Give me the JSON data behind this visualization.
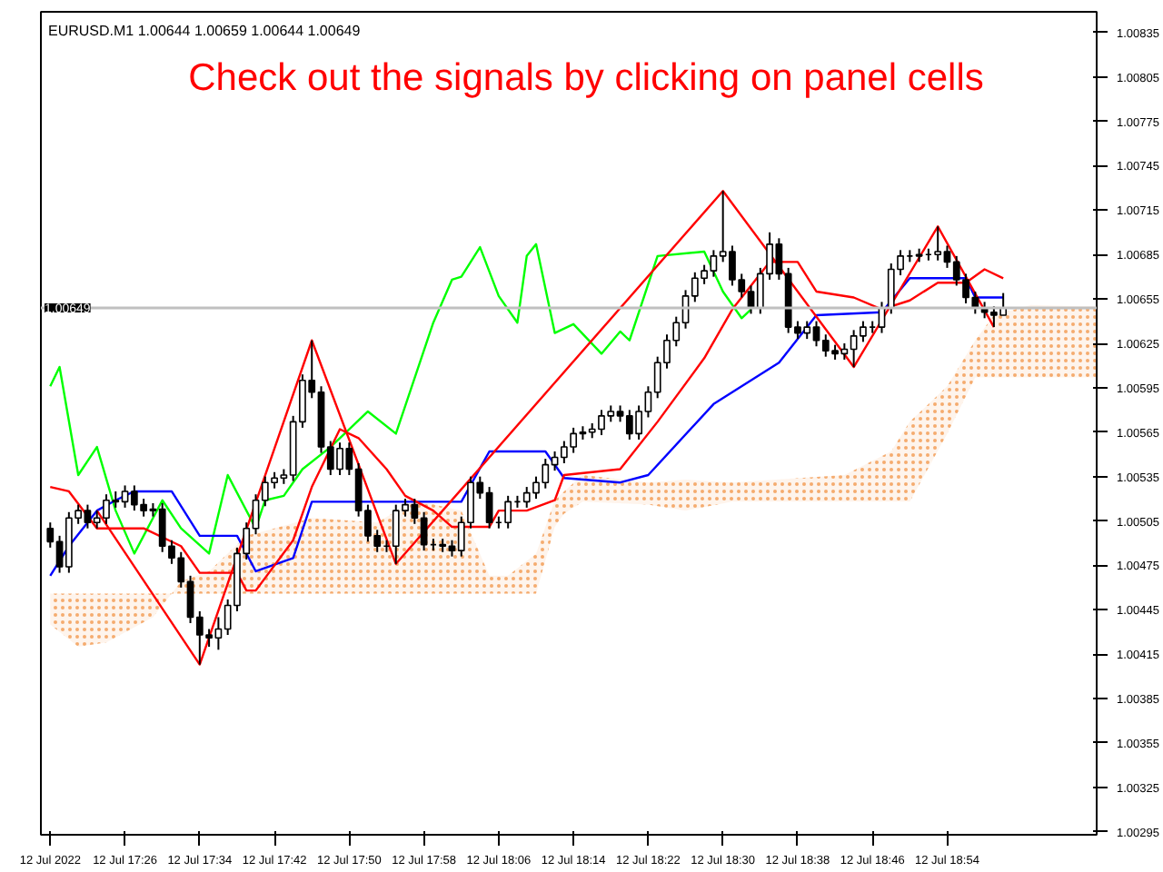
{
  "chart_data": {
    "type": "candlestick",
    "title": "Check out the signals by clicking on panel cells",
    "annotations": [
      "EURUSD.M1  1.00644 1.00659 1.00644 1.00649"
    ],
    "xlim": [
      "2022-07-12T17:17",
      "2022-07-12T19:10"
    ],
    "ylim": [
      1.00293,
      1.00849
    ],
    "xticks": [
      {
        "value": "2022-07-12T17:18",
        "label": "12 Jul 2022"
      },
      {
        "value": "2022-07-12T17:26",
        "label": "12 Jul 17:26"
      },
      {
        "value": "2022-07-12T17:34",
        "label": "12 Jul 17:34"
      },
      {
        "value": "2022-07-12T17:42",
        "label": "12 Jul 17:42"
      },
      {
        "value": "2022-07-12T17:50",
        "label": "12 Jul 17:50"
      },
      {
        "value": "2022-07-12T17:58",
        "label": "12 Jul 17:58"
      },
      {
        "value": "2022-07-12T18:06",
        "label": "12 Jul 18:06"
      },
      {
        "value": "2022-07-12T18:14",
        "label": "12 Jul 18:14"
      },
      {
        "value": "2022-07-12T18:22",
        "label": "12 Jul 18:22"
      },
      {
        "value": "2022-07-12T18:30",
        "label": "12 Jul 18:30"
      },
      {
        "value": "2022-07-12T18:38",
        "label": "12 Jul 18:38"
      },
      {
        "value": "2022-07-12T18:46",
        "label": "12 Jul 18:46"
      },
      {
        "value": "2022-07-12T18:54",
        "label": "12 Jul 18:54"
      }
    ],
    "yticks": [
      1.00295,
      1.00325,
      1.00355,
      1.00385,
      1.00415,
      1.00445,
      1.00475,
      1.00505,
      1.00535,
      1.00565,
      1.00595,
      1.00625,
      1.00655,
      1.00685,
      1.00715,
      1.00745,
      1.00775,
      1.00805,
      1.00835
    ],
    "ref_lines": [
      {
        "axis": "y",
        "value": 1.00649,
        "label": "1.00649",
        "color": "#c0c0c0"
      }
    ],
    "x": [
      "2022-07-12T17:18",
      "2022-07-12T17:19",
      "2022-07-12T17:20",
      "2022-07-12T17:21",
      "2022-07-12T17:22",
      "2022-07-12T17:23",
      "2022-07-12T17:24",
      "2022-07-12T17:25",
      "2022-07-12T17:26",
      "2022-07-12T17:27",
      "2022-07-12T17:28",
      "2022-07-12T17:29",
      "2022-07-12T17:30",
      "2022-07-12T17:31",
      "2022-07-12T17:32",
      "2022-07-12T17:33",
      "2022-07-12T17:34",
      "2022-07-12T17:35",
      "2022-07-12T17:36",
      "2022-07-12T17:37",
      "2022-07-12T17:38",
      "2022-07-12T17:39",
      "2022-07-12T17:40",
      "2022-07-12T17:41",
      "2022-07-12T17:42",
      "2022-07-12T17:43",
      "2022-07-12T17:44",
      "2022-07-12T17:45",
      "2022-07-12T17:46",
      "2022-07-12T17:47",
      "2022-07-12T17:48",
      "2022-07-12T17:49",
      "2022-07-12T17:50",
      "2022-07-12T17:51",
      "2022-07-12T17:52",
      "2022-07-12T17:53",
      "2022-07-12T17:54",
      "2022-07-12T17:55",
      "2022-07-12T17:56",
      "2022-07-12T17:57",
      "2022-07-12T17:58",
      "2022-07-12T17:59",
      "2022-07-12T18:00",
      "2022-07-12T18:01",
      "2022-07-12T18:02",
      "2022-07-12T18:03",
      "2022-07-12T18:04",
      "2022-07-12T18:05",
      "2022-07-12T18:06",
      "2022-07-12T18:07",
      "2022-07-12T18:08",
      "2022-07-12T18:09",
      "2022-07-12T18:10",
      "2022-07-12T18:11",
      "2022-07-12T18:12",
      "2022-07-12T18:13",
      "2022-07-12T18:14",
      "2022-07-12T18:15",
      "2022-07-12T18:16",
      "2022-07-12T18:17",
      "2022-07-12T18:18",
      "2022-07-12T18:19",
      "2022-07-12T18:20",
      "2022-07-12T18:21",
      "2022-07-12T18:22",
      "2022-07-12T18:23",
      "2022-07-12T18:24",
      "2022-07-12T18:25",
      "2022-07-12T18:26",
      "2022-07-12T18:27",
      "2022-07-12T18:28",
      "2022-07-12T18:29",
      "2022-07-12T18:30",
      "2022-07-12T18:31",
      "2022-07-12T18:32",
      "2022-07-12T18:33",
      "2022-07-12T18:34",
      "2022-07-12T18:35",
      "2022-07-12T18:36",
      "2022-07-12T18:37",
      "2022-07-12T18:38",
      "2022-07-12T18:39",
      "2022-07-12T18:40",
      "2022-07-12T18:41",
      "2022-07-12T18:42",
      "2022-07-12T18:43",
      "2022-07-12T18:44",
      "2022-07-12T18:45",
      "2022-07-12T18:46",
      "2022-07-12T18:47",
      "2022-07-12T18:48",
      "2022-07-12T18:49",
      "2022-07-12T18:50",
      "2022-07-12T18:51",
      "2022-07-12T18:52",
      "2022-07-12T18:53",
      "2022-07-12T18:54",
      "2022-07-12T18:55",
      "2022-07-12T18:56",
      "2022-07-12T18:57",
      "2022-07-12T18:58",
      "2022-07-12T18:59",
      "2022-07-12T19:00"
    ],
    "ohlc": [
      [
        1.005,
        1.00504,
        1.00487,
        1.00491
      ],
      [
        1.00491,
        1.00495,
        1.0047,
        1.00474
      ],
      [
        1.00474,
        1.00511,
        1.0047,
        1.00507
      ],
      [
        1.00507,
        1.00516,
        1.00503,
        1.00512
      ],
      [
        1.00512,
        1.00516,
        1.005,
        1.00504
      ],
      [
        1.00504,
        1.00512,
        1.005,
        1.00507
      ],
      [
        1.00507,
        1.00523,
        1.00503,
        1.00519
      ],
      [
        1.00519,
        1.00525,
        1.00514,
        1.00518
      ],
      [
        1.00518,
        1.00529,
        1.00514,
        1.00525
      ],
      [
        1.00525,
        1.00529,
        1.00512,
        1.00516
      ],
      [
        1.00516,
        1.0052,
        1.00508,
        1.00512
      ],
      [
        1.00512,
        1.00517,
        1.00508,
        1.00513
      ],
      [
        1.00513,
        1.00517,
        1.00484,
        1.00488
      ],
      [
        1.00488,
        1.00492,
        1.00476,
        1.0048
      ],
      [
        1.0048,
        1.00484,
        1.0046,
        1.00464
      ],
      [
        1.00464,
        1.00468,
        1.00436,
        1.0044
      ],
      [
        1.0044,
        1.00444,
        1.00408,
        1.00428
      ],
      [
        1.00428,
        1.00432,
        1.0042,
        1.00426
      ],
      [
        1.00426,
        1.0044,
        1.00418,
        1.00432
      ],
      [
        1.00432,
        1.00452,
        1.00428,
        1.00448
      ],
      [
        1.00448,
        1.00487,
        1.00444,
        1.00483
      ],
      [
        1.00483,
        1.00504,
        1.00479,
        1.005
      ],
      [
        1.005,
        1.00523,
        1.00496,
        1.00519
      ],
      [
        1.00519,
        1.00535,
        1.00515,
        1.00531
      ],
      [
        1.00531,
        1.00538,
        1.00527,
        1.00534
      ],
      [
        1.00534,
        1.0054,
        1.0053,
        1.00536
      ],
      [
        1.00536,
        1.00576,
        1.00532,
        1.00572
      ],
      [
        1.00572,
        1.00604,
        1.00568,
        1.006
      ],
      [
        1.006,
        1.00627,
        1.00588,
        1.00592
      ],
      [
        1.00592,
        1.00596,
        1.00551,
        1.00555
      ],
      [
        1.00555,
        1.00559,
        1.00536,
        1.0054
      ],
      [
        1.0054,
        1.00558,
        1.00536,
        1.00554
      ],
      [
        1.00554,
        1.00558,
        1.00536,
        1.0054
      ],
      [
        1.0054,
        1.00544,
        1.00508,
        1.00512
      ],
      [
        1.00512,
        1.00516,
        1.00491,
        1.00495
      ],
      [
        1.00495,
        1.00499,
        1.00484,
        1.00488
      ],
      [
        1.00488,
        1.00492,
        1.00484,
        1.00488
      ],
      [
        1.00488,
        1.00516,
        1.00476,
        1.00512
      ],
      [
        1.00512,
        1.0052,
        1.00508,
        1.00516
      ],
      [
        1.00516,
        1.0052,
        1.00503,
        1.00507
      ],
      [
        1.00507,
        1.00511,
        1.00485,
        1.00489
      ],
      [
        1.00489,
        1.00493,
        1.00485,
        1.00489
      ],
      [
        1.00489,
        1.00493,
        1.00484,
        1.00488
      ],
      [
        1.00488,
        1.00492,
        1.00481,
        1.00485
      ],
      [
        1.00485,
        1.00508,
        1.00481,
        1.00504
      ],
      [
        1.00504,
        1.00535,
        1.005,
        1.00531
      ],
      [
        1.00531,
        1.00535,
        1.0052,
        1.00524
      ],
      [
        1.00524,
        1.00528,
        1.005,
        1.00504
      ],
      [
        1.00504,
        1.00508,
        1.005,
        1.00504
      ],
      [
        1.00504,
        1.00522,
        1.005,
        1.00518
      ],
      [
        1.00518,
        1.00522,
        1.00514,
        1.00518
      ],
      [
        1.00518,
        1.00528,
        1.00514,
        1.00524
      ],
      [
        1.00524,
        1.00535,
        1.0052,
        1.00531
      ],
      [
        1.00531,
        1.00547,
        1.00527,
        1.00543
      ],
      [
        1.00543,
        1.00552,
        1.00539,
        1.00548
      ],
      [
        1.00548,
        1.00559,
        1.00544,
        1.00555
      ],
      [
        1.00555,
        1.00568,
        1.00551,
        1.00564
      ],
      [
        1.00564,
        1.00569,
        1.0056,
        1.00565
      ],
      [
        1.00565,
        1.00571,
        1.00561,
        1.00567
      ],
      [
        1.00567,
        1.0058,
        1.00563,
        1.00576
      ],
      [
        1.00576,
        1.00583,
        1.00572,
        1.00579
      ],
      [
        1.00579,
        1.00583,
        1.00572,
        1.00576
      ],
      [
        1.00576,
        1.0058,
        1.0056,
        1.00564
      ],
      [
        1.00564,
        1.00583,
        1.0056,
        1.00579
      ],
      [
        1.00579,
        1.00596,
        1.00575,
        1.00592
      ],
      [
        1.00592,
        1.00616,
        1.00588,
        1.00612
      ],
      [
        1.00612,
        1.00631,
        1.00608,
        1.00627
      ],
      [
        1.00627,
        1.00643,
        1.00623,
        1.00639
      ],
      [
        1.00639,
        1.00661,
        1.00635,
        1.00657
      ],
      [
        1.00657,
        1.00673,
        1.00653,
        1.00669
      ],
      [
        1.00669,
        1.00678,
        1.00665,
        1.00674
      ],
      [
        1.00674,
        1.00688,
        1.0067,
        1.00684
      ],
      [
        1.00684,
        1.00728,
        1.0068,
        1.00687
      ],
      [
        1.00687,
        1.00691,
        1.00664,
        1.00668
      ],
      [
        1.00668,
        1.00672,
        1.00656,
        1.0066
      ],
      [
        1.0066,
        1.00664,
        1.00645,
        1.00649
      ],
      [
        1.00649,
        1.00676,
        1.00645,
        1.00672
      ],
      [
        1.00672,
        1.007,
        1.00668,
        1.00692
      ],
      [
        1.00692,
        1.00696,
        1.00668,
        1.00672
      ],
      [
        1.00672,
        1.00676,
        1.00632,
        1.00636
      ],
      [
        1.00636,
        1.0064,
        1.00628,
        1.00632
      ],
      [
        1.00632,
        1.0064,
        1.00628,
        1.00636
      ],
      [
        1.00636,
        1.0064,
        1.00623,
        1.00627
      ],
      [
        1.00627,
        1.00631,
        1.00616,
        1.0062
      ],
      [
        1.0062,
        1.00624,
        1.00614,
        1.00618
      ],
      [
        1.00618,
        1.00625,
        1.00614,
        1.00621
      ],
      [
        1.00621,
        1.00634,
        1.00609,
        1.0063
      ],
      [
        1.0063,
        1.0064,
        1.00626,
        1.00636
      ],
      [
        1.00636,
        1.0064,
        1.00632,
        1.00636
      ],
      [
        1.00636,
        1.00653,
        1.00632,
        1.00649
      ],
      [
        1.00649,
        1.00679,
        1.00645,
        1.00675
      ],
      [
        1.00675,
        1.00688,
        1.00671,
        1.00684
      ],
      [
        1.00684,
        1.00688,
        1.0068,
        1.00684
      ],
      [
        1.00684,
        1.00689,
        1.0068,
        1.00685
      ],
      [
        1.00685,
        1.00689,
        1.00681,
        1.00685
      ],
      [
        1.00685,
        1.00704,
        1.00681,
        1.00687
      ],
      [
        1.00687,
        1.00691,
        1.00676,
        1.0068
      ],
      [
        1.0068,
        1.00684,
        1.00664,
        1.00668
      ],
      [
        1.00668,
        1.00672,
        1.00652,
        1.00656
      ],
      [
        1.00656,
        1.0066,
        1.00645,
        1.00649
      ],
      [
        1.00649,
        1.00653,
        1.00642,
        1.00646
      ],
      [
        1.00646,
        1.0065,
        1.00636,
        1.00644
      ],
      [
        1.00644,
        1.00659,
        1.00644,
        1.00649
      ]
    ],
    "series": [
      {
        "type": "area",
        "color": "#f4a460",
        "x": [
          "2022-07-12T17:18",
          "2022-07-12T17:21",
          "2022-07-12T17:24",
          "2022-07-12T17:29",
          "2022-07-12T17:31",
          "2022-07-12T17:32",
          "2022-07-12T17:35",
          "2022-07-12T17:39",
          "2022-07-12T17:42",
          "2022-07-12T17:46",
          "2022-07-12T17:53",
          "2022-07-12T17:57",
          "2022-07-12T18:02",
          "2022-07-12T18:05",
          "2022-07-12T18:07",
          "2022-07-12T18:10",
          "2022-07-12T18:12",
          "2022-07-12T18:13",
          "2022-07-12T18:15",
          "2022-07-12T18:22",
          "2022-07-12T18:26",
          "2022-07-12T18:31",
          "2022-07-12T18:43",
          "2022-07-12T18:48",
          "2022-07-12T18:50",
          "2022-07-12T18:54",
          "2022-07-12T18:57",
          "2022-07-12T18:59",
          "2022-07-12T19:03",
          "2022-07-12T19:08",
          "2022-07-12T19:10"
        ],
        "values": [
          null,
          null,
          null,
          null,
          null,
          null,
          null,
          null,
          null,
          null,
          null,
          null,
          null,
          null,
          null,
          null,
          null,
          null,
          null,
          null,
          null,
          null,
          null,
          null,
          null,
          null,
          null,
          null,
          null,
          null,
          null
        ],
        "upper": [
          1.00435,
          1.0042,
          1.00423,
          1.0044,
          1.00456,
          1.00464,
          1.00471,
          1.00495,
          1.005,
          1.00507,
          1.00504,
          1.00519,
          1.00512,
          1.00468,
          1.00468,
          1.00483,
          1.00519,
          1.00525,
          1.00536,
          1.00531,
          1.00533,
          1.00531,
          1.00536,
          1.00552,
          1.00572,
          1.00596,
          1.00627,
          1.00644,
          1.00651,
          1.0065,
          1.0065
        ],
        "lower": [
          1.00456,
          1.00456,
          1.00456,
          1.00456,
          1.00456,
          1.00456,
          1.00456,
          1.00456,
          1.00456,
          1.00456,
          1.00456,
          1.00456,
          1.00456,
          1.00456,
          1.00456,
          1.00456,
          1.00501,
          1.0051,
          1.00518,
          1.00516,
          1.00512,
          1.00518,
          1.00518,
          1.00518,
          1.00518,
          1.00564,
          1.00602,
          1.00602,
          1.00602,
          1.00602,
          1.00602
        ]
      },
      {
        "type": "line",
        "color": "#00ff00",
        "x": [
          "2022-07-12T17:18",
          "2022-07-12T17:19",
          "2022-07-12T17:21",
          "2022-07-12T17:23",
          "2022-07-12T17:25",
          "2022-07-12T17:27",
          "2022-07-12T17:30",
          "2022-07-12T17:32",
          "2022-07-12T17:35",
          "2022-07-12T17:37",
          "2022-07-12T17:40",
          "2022-07-12T17:41",
          "2022-07-12T17:43",
          "2022-07-12T17:45",
          "2022-07-12T17:48",
          "2022-07-12T17:50",
          "2022-07-12T17:52",
          "2022-07-12T17:55",
          "2022-07-12T17:59",
          "2022-07-12T18:01",
          "2022-07-12T18:02",
          "2022-07-12T18:04",
          "2022-07-12T18:06",
          "2022-07-12T18:08",
          "2022-07-12T18:09",
          "2022-07-12T18:10",
          "2022-07-12T18:12",
          "2022-07-12T18:14",
          "2022-07-12T18:17",
          "2022-07-12T18:19",
          "2022-07-12T18:20",
          "2022-07-12T18:23",
          "2022-07-12T18:28",
          "2022-07-12T18:30",
          "2022-07-12T18:32",
          "2022-07-12T18:33"
        ],
        "values": [
          1.00596,
          1.00609,
          1.00536,
          1.00555,
          1.00512,
          1.00483,
          1.00519,
          1.005,
          1.00483,
          1.00536,
          1.005,
          1.00519,
          1.00522,
          1.0054,
          1.00555,
          1.00567,
          1.00579,
          1.00564,
          1.00639,
          1.00668,
          1.0067,
          1.0069,
          1.00657,
          1.00639,
          1.00684,
          1.00692,
          1.00632,
          1.00638,
          1.00618,
          1.00633,
          1.00627,
          1.00684,
          1.00687,
          1.0066,
          1.00642,
          1.00648
        ]
      },
      {
        "type": "line",
        "color": "#0000ff",
        "x": [
          "2022-07-12T17:18",
          "2022-07-12T17:20",
          "2022-07-12T17:23",
          "2022-07-12T17:25",
          "2022-07-12T17:27",
          "2022-07-12T17:31",
          "2022-07-12T17:34",
          "2022-07-12T17:38",
          "2022-07-12T17:40",
          "2022-07-12T17:44",
          "2022-07-12T17:46",
          "2022-07-12T18:02",
          "2022-07-12T18:05",
          "2022-07-12T18:11",
          "2022-07-12T18:13",
          "2022-07-12T18:19",
          "2022-07-12T18:22",
          "2022-07-12T18:29",
          "2022-07-12T18:36",
          "2022-07-12T18:40",
          "2022-07-12T18:47",
          "2022-07-12T18:50",
          "2022-07-12T18:56",
          "2022-07-12T18:57",
          "2022-07-12T19:00"
        ],
        "values": [
          1.00468,
          1.00488,
          1.00512,
          1.00519,
          1.00525,
          1.00525,
          1.00495,
          1.00495,
          1.00471,
          1.0048,
          1.00518,
          1.00518,
          1.00552,
          1.00552,
          1.00534,
          1.00531,
          1.00536,
          1.00584,
          1.00612,
          1.00644,
          1.00646,
          1.00669,
          1.00669,
          1.00656,
          1.00656
        ]
      },
      {
        "type": "line",
        "color": "#ff0000",
        "x": [
          "2022-07-12T17:18",
          "2022-07-12T17:20",
          "2022-07-12T17:23",
          "2022-07-12T17:28",
          "2022-07-12T17:32",
          "2022-07-12T17:34",
          "2022-07-12T17:38",
          "2022-07-12T17:39",
          "2022-07-12T17:40",
          "2022-07-12T17:44",
          "2022-07-12T17:46",
          "2022-07-12T17:49",
          "2022-07-12T17:51",
          "2022-07-12T17:54",
          "2022-07-12T17:56",
          "2022-07-12T17:59",
          "2022-07-12T18:01",
          "2022-07-12T18:05",
          "2022-07-12T18:06",
          "2022-07-12T18:09",
          "2022-07-12T18:12",
          "2022-07-12T18:13",
          "2022-07-12T18:19",
          "2022-07-12T18:23",
          "2022-07-12T18:28",
          "2022-07-12T18:31",
          "2022-07-12T18:35",
          "2022-07-12T18:38",
          "2022-07-12T18:40",
          "2022-07-12T18:44",
          "2022-07-12T18:47",
          "2022-07-12T18:50",
          "2022-07-12T18:53",
          "2022-07-12T18:56",
          "2022-07-12T18:58",
          "2022-07-12T19:00"
        ],
        "values": [
          1.00528,
          1.00525,
          1.005,
          1.005,
          1.00488,
          1.0047,
          1.0047,
          1.00458,
          1.00458,
          1.00492,
          1.00528,
          1.00567,
          1.00561,
          1.0054,
          1.00522,
          1.00512,
          1.00501,
          1.00501,
          1.00512,
          1.00512,
          1.00519,
          1.00536,
          1.0054,
          1.00572,
          1.00615,
          1.00648,
          1.0068,
          1.0068,
          1.0066,
          1.00656,
          1.00648,
          1.00654,
          1.00666,
          1.00666,
          1.00675,
          1.00669
        ]
      },
      {
        "type": "line",
        "color": "#ff0000",
        "x": [
          "2022-07-12T17:23",
          "2022-07-12T17:34",
          "2022-07-12T17:46",
          "2022-07-12T17:55",
          "2022-07-12T18:30",
          "2022-07-12T18:44",
          "2022-07-12T18:53",
          "2022-07-12T18:59"
        ],
        "values": [
          1.00512,
          1.00408,
          1.00627,
          1.00476,
          1.00728,
          1.00609,
          1.00704,
          1.00636
        ]
      }
    ]
  }
}
